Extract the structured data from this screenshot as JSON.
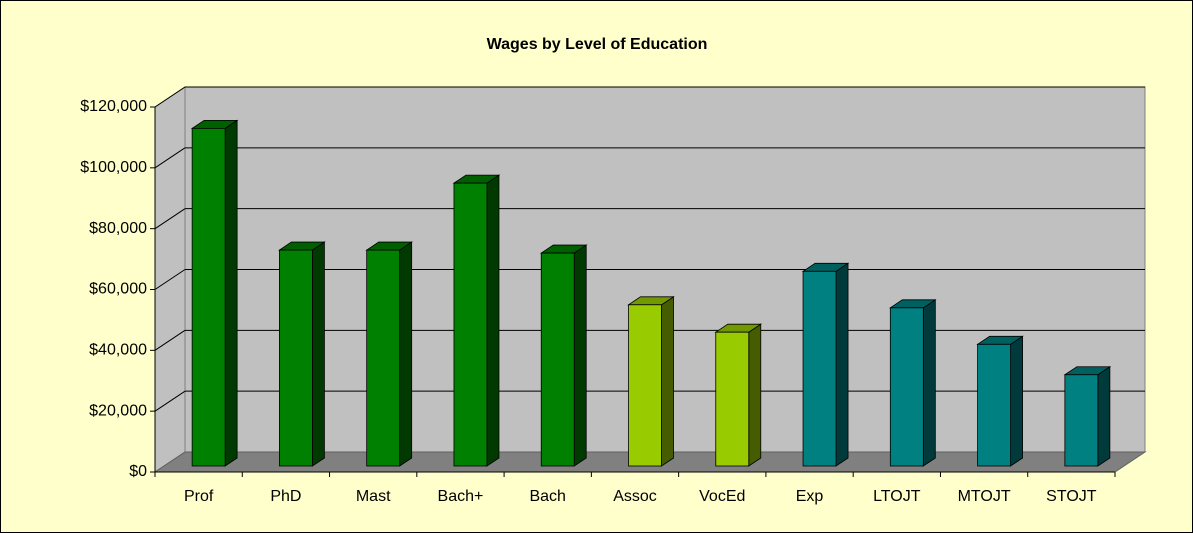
{
  "chart_data": {
    "type": "bar3d",
    "title": "Wages by Level of Education",
    "categories": [
      "Prof",
      "PhD",
      "Mast",
      "Bach+",
      "Bach",
      "Assoc",
      "VocEd",
      "Exp",
      "LTOJT",
      "MTOJT",
      "STOJT"
    ],
    "values": [
      111000,
      71000,
      71000,
      93000,
      70000,
      53000,
      44000,
      64000,
      52000,
      40000,
      30000
    ],
    "colors": [
      "#008000",
      "#008000",
      "#008000",
      "#008000",
      "#008000",
      "#99CC00",
      "#99CC00",
      "#008080",
      "#008080",
      "#008080",
      "#008080"
    ],
    "ylim": [
      0,
      120000
    ],
    "yticks": [
      {
        "value": 0,
        "label": "$0"
      },
      {
        "value": 20000,
        "label": "$20,000"
      },
      {
        "value": 40000,
        "label": "$40,000"
      },
      {
        "value": 60000,
        "label": "$60,000"
      },
      {
        "value": 80000,
        "label": "$80,000"
      },
      {
        "value": 100000,
        "label": "$100,000"
      },
      {
        "value": 120000,
        "label": "$120,000"
      }
    ],
    "grid": true
  }
}
